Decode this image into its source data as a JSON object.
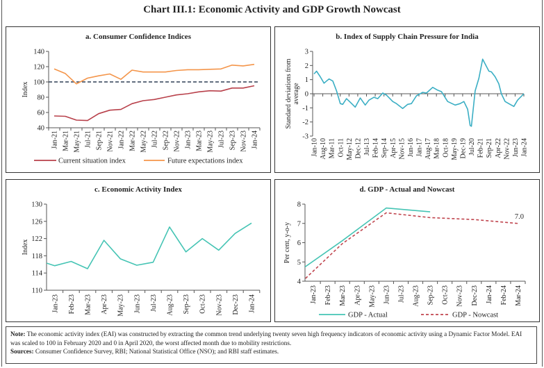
{
  "title": "Chart III.1: Economic Activity and GDP Growth Nowcast",
  "note_label": "Note:",
  "note": "The economic activity index (EAI) was constructed by extracting the common trend underlying twenty seven high frequency indicators of economic activity using a Dynamic Factor Model. EAI was scaled to 100 in February 2020 and 0 in April 2020, the worst affected month due to mobility restrictions.",
  "sources_label": "Sources:",
  "sources": "Consumer Confidence Survey, RBI; National Statistical Office (NSO); and RBI staff estimates.",
  "chart_data": [
    {
      "type": "line",
      "title": "a. Consumer Confidence Indices",
      "ylabel": "Index",
      "ylim": [
        40,
        140
      ],
      "yticks": [
        "40",
        "60",
        "80",
        "100",
        "120",
        "140"
      ],
      "categories": [
        "Jan-21",
        "Mar-21",
        "May-21",
        "Jul-21",
        "Sep-21",
        "Nov-21",
        "Jan-22",
        "Mar-22",
        "May-22",
        "Jul-22",
        "Sep-22",
        "Nov-22",
        "Jan-23",
        "Mar-23",
        "May-23",
        "Jul-23",
        "Sep-23",
        "Nov-23",
        "Jan-24"
      ],
      "reference_line": 100,
      "reference_color": "#2f3e55",
      "legend": "bottom",
      "series": [
        {
          "name": "Current situation index",
          "color": "#b8404a",
          "values": [
            55.5,
            55,
            50,
            49.5,
            58.5,
            63,
            64,
            71.5,
            75.5,
            77,
            80,
            83,
            84.5,
            87,
            88.5,
            88,
            92,
            92,
            95
          ]
        },
        {
          "name": "Future expectations index",
          "color": "#f4954a",
          "values": [
            117,
            111,
            97.5,
            105,
            108,
            110.5,
            103.5,
            115.5,
            113,
            113,
            113,
            115,
            116,
            116,
            116.5,
            117,
            122,
            121,
            123
          ]
        }
      ]
    },
    {
      "type": "line",
      "title": "b. Index of Supply Chain Pressure for India",
      "ylabel": "Standard deviations from average",
      "ylim": [
        -3,
        3
      ],
      "yticks": [
        "-3",
        "-2",
        "-1",
        "0",
        "1",
        "2",
        "3"
      ],
      "xtick_labels": [
        "Jan-10",
        "Aug-10",
        "Mar-11",
        "Oct-11",
        "May-12",
        "Dec-12",
        "Jul-13",
        "Feb-14",
        "Sep-14",
        "Apr-15",
        "Nov-15",
        "Jun-16",
        "Jan-17",
        "Aug-17",
        "Mar-18",
        "Oct-18",
        "May-19",
        "Dec-19",
        "Jul-20",
        "Feb-21",
        "Sep-21",
        "Apr-22",
        "Nov-22",
        "Jun-23",
        "Jan-24"
      ],
      "series": [
        {
          "color": "#3aaec4",
          "points": [
            {
              "x": "Jan-10",
              "y": 1.4
            },
            {
              "x": "Mar-10",
              "y": 1.6
            },
            {
              "x": "Jun-10",
              "y": 1.2
            },
            {
              "x": "Sep-10",
              "y": 0.75
            },
            {
              "x": "Nov-10",
              "y": 0.9
            },
            {
              "x": "Jan-11",
              "y": 1.05
            },
            {
              "x": "Apr-11",
              "y": 0.9
            },
            {
              "x": "Jul-11",
              "y": 0.2
            },
            {
              "x": "Oct-11",
              "y": -0.7
            },
            {
              "x": "Dec-11",
              "y": -0.75
            },
            {
              "x": "Mar-12",
              "y": -0.35
            },
            {
              "x": "Jun-12",
              "y": -0.6
            },
            {
              "x": "Oct-12",
              "y": -0.95
            },
            {
              "x": "Feb-13",
              "y": -0.3
            },
            {
              "x": "Jun-13",
              "y": -0.8
            },
            {
              "x": "Sep-13",
              "y": -0.45
            },
            {
              "x": "Jan-14",
              "y": -0.25
            },
            {
              "x": "Apr-14",
              "y": -0.35
            },
            {
              "x": "Aug-14",
              "y": 0.05
            },
            {
              "x": "Nov-14",
              "y": -0.1
            },
            {
              "x": "Apr-15",
              "y": -0.55
            },
            {
              "x": "Jul-15",
              "y": -0.7
            },
            {
              "x": "Dec-15",
              "y": -1.05
            },
            {
              "x": "Apr-16",
              "y": -0.75
            },
            {
              "x": "Jul-16",
              "y": -0.7
            },
            {
              "x": "Nov-16",
              "y": -0.15
            },
            {
              "x": "Apr-17",
              "y": 0.1
            },
            {
              "x": "Jul-17",
              "y": 0.05
            },
            {
              "x": "Dec-17",
              "y": 0.45
            },
            {
              "x": "Apr-18",
              "y": 0.25
            },
            {
              "x": "Jul-18",
              "y": 0.15
            },
            {
              "x": "Dec-18",
              "y": -0.55
            },
            {
              "x": "Jun-19",
              "y": -0.8
            },
            {
              "x": "Oct-19",
              "y": -0.7
            },
            {
              "x": "Jan-20",
              "y": -0.55
            },
            {
              "x": "Apr-20",
              "y": -1.1
            },
            {
              "x": "Jun-20",
              "y": -2.25
            },
            {
              "x": "Jul-20",
              "y": -2.3
            },
            {
              "x": "Oct-20",
              "y": 0.2
            },
            {
              "x": "Jan-21",
              "y": 1.1
            },
            {
              "x": "Apr-21",
              "y": 2.45
            },
            {
              "x": "Sep-21",
              "y": 1.6
            },
            {
              "x": "Nov-21",
              "y": 1.55
            },
            {
              "x": "Feb-22",
              "y": 1.2
            },
            {
              "x": "May-22",
              "y": 0.7
            },
            {
              "x": "Jul-22",
              "y": 0.0
            },
            {
              "x": "Oct-22",
              "y": -0.55
            },
            {
              "x": "Feb-23",
              "y": -0.75
            },
            {
              "x": "May-23",
              "y": -0.9
            },
            {
              "x": "Aug-23",
              "y": -0.45
            },
            {
              "x": "Jan-24",
              "y": 0.0
            }
          ]
        }
      ]
    },
    {
      "type": "line",
      "title": "c. Economic Activity Index",
      "ylabel": "Index",
      "ylim": [
        110,
        130
      ],
      "yticks": [
        "110",
        "114",
        "118",
        "122",
        "126",
        "130"
      ],
      "categories": [
        "Jan-23",
        "Feb-23",
        "Mar-23",
        "Apr-23",
        "May-23",
        "Jun-23",
        "Jul-23",
        "Aug-23",
        "Sep-23",
        "Oct-23",
        "Nov-23",
        "Dec-23",
        "Jan-24"
      ],
      "series": [
        {
          "color": "#45c4b4",
          "points": [
            {
              "x": "Dec-22",
              "y": 116.9
            },
            {
              "x": "Jan-23",
              "y": 115.7
            },
            {
              "x": "Feb-23",
              "y": 116.7
            },
            {
              "x": "Mar-23",
              "y": 115.0
            },
            {
              "x": "Apr-23",
              "y": 121.6
            },
            {
              "x": "May-23",
              "y": 117.3
            },
            {
              "x": "Jun-23",
              "y": 115.8
            },
            {
              "x": "Jul-23",
              "y": 116.5
            },
            {
              "x": "Aug-23",
              "y": 124.7
            },
            {
              "x": "Sep-23",
              "y": 118.9
            },
            {
              "x": "Oct-23",
              "y": 122.0
            },
            {
              "x": "Nov-23",
              "y": 119.3
            },
            {
              "x": "Dec-23",
              "y": 123.2
            },
            {
              "x": "Jan-24",
              "y": 125.6
            }
          ]
        }
      ]
    },
    {
      "type": "line",
      "title": "d. GDP - Actual and Nowcast",
      "ylabel": "Per cent, y-o-y",
      "ylim": [
        4,
        8
      ],
      "yticks": [
        "4",
        "5",
        "6",
        "7",
        "8"
      ],
      "categories": [
        "Jan-23",
        "Feb-23",
        "Mar-23",
        "Apr-23",
        "May-23",
        "Jun-23",
        "Jul-23",
        "Aug-23",
        "Sep-23",
        "Oct-23",
        "Nov-23",
        "Dec-23",
        "Jan-24",
        "Feb-24",
        "Mar-24"
      ],
      "legend": "bottom",
      "annotation": "7.0",
      "series": [
        {
          "name": "GDP - Actual",
          "color": "#45c4b4",
          "dashed": false,
          "points": [
            {
              "x": "Dec-22",
              "y": 4.5
            },
            {
              "x": "Mar-23",
              "y": 6.1
            },
            {
              "x": "Jun-23",
              "y": 7.8
            },
            {
              "x": "Sep-23",
              "y": 7.6
            }
          ]
        },
        {
          "name": "GDP - Nowcast",
          "color": "#c0454e",
          "dashed": true,
          "points": [
            {
              "x": "Dec-22",
              "y": 3.8
            },
            {
              "x": "Mar-23",
              "y": 5.95
            },
            {
              "x": "Jun-23",
              "y": 7.55
            },
            {
              "x": "Sep-23",
              "y": 7.3
            },
            {
              "x": "Dec-23",
              "y": 7.2
            },
            {
              "x": "Mar-24",
              "y": 7.0
            }
          ]
        }
      ]
    }
  ]
}
